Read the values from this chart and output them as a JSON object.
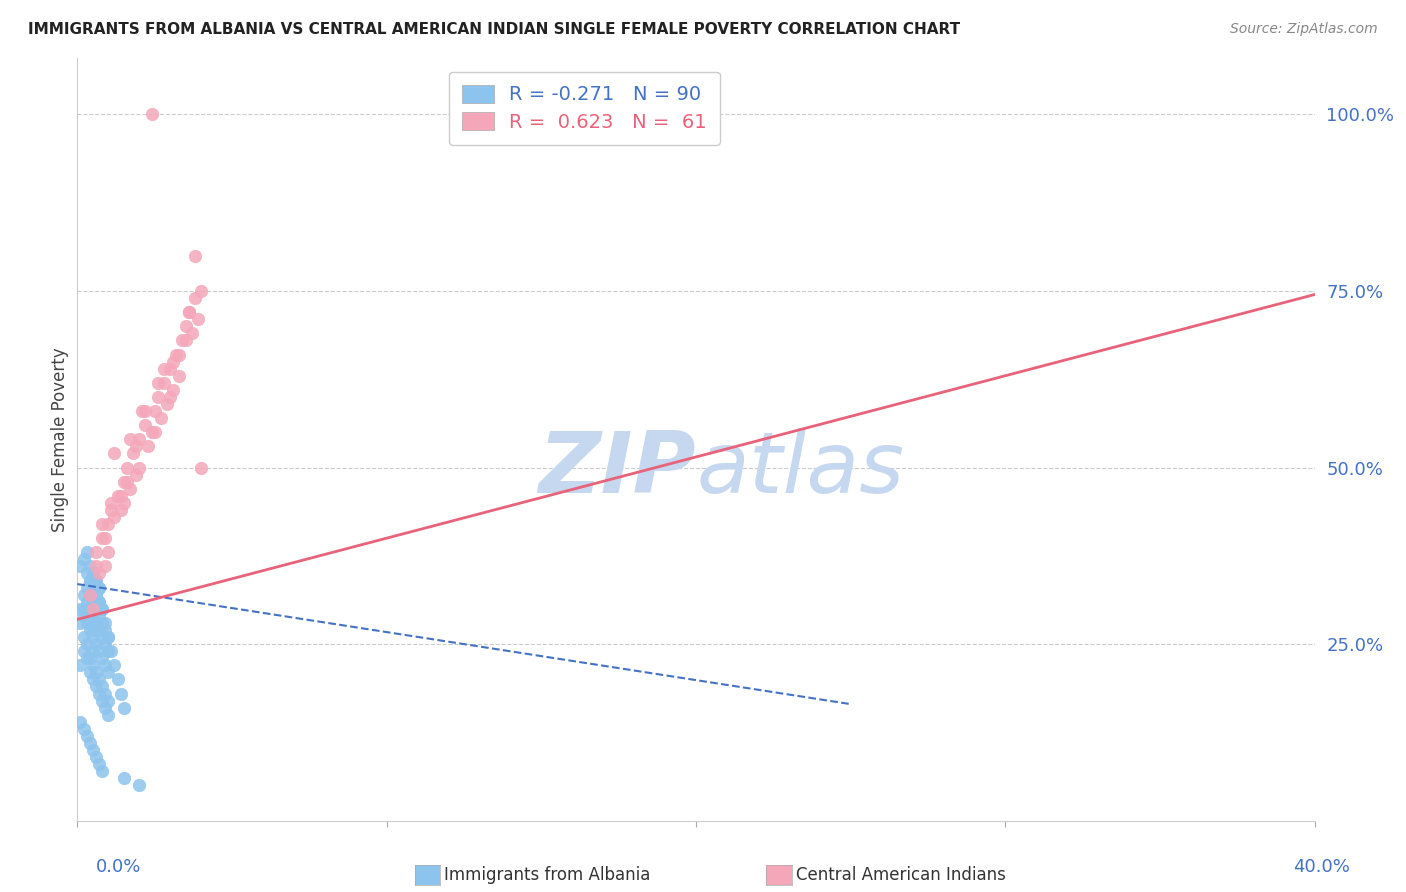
{
  "title": "IMMIGRANTS FROM ALBANIA VS CENTRAL AMERICAN INDIAN SINGLE FEMALE POVERTY CORRELATION CHART",
  "source": "Source: ZipAtlas.com",
  "ylabel": "Single Female Poverty",
  "ytick_labels": [
    "25.0%",
    "50.0%",
    "75.0%",
    "100.0%"
  ],
  "ytick_values": [
    0.25,
    0.5,
    0.75,
    1.0
  ],
  "xlim": [
    0.0,
    0.4
  ],
  "ylim": [
    0.0,
    1.08
  ],
  "legend_r1": "-0.271",
  "legend_n1": "90",
  "legend_r2": "0.623",
  "legend_n2": "61",
  "blue_color": "#8DC4ED",
  "blue_line_color": "#4472C4",
  "pink_color": "#F4A7B9",
  "pink_line_color": "#E8637A",
  "watermark_color": "#C5D8F0",
  "title_color": "#222222",
  "source_color": "#888888",
  "axis_label_color": "#4472C4",
  "grid_color": "#CCCCCC",
  "background_color": "#FFFFFF",
  "blue_x": [
    0.001,
    0.002,
    0.002,
    0.003,
    0.003,
    0.003,
    0.004,
    0.004,
    0.004,
    0.004,
    0.005,
    0.005,
    0.005,
    0.005,
    0.005,
    0.006,
    0.006,
    0.006,
    0.006,
    0.007,
    0.007,
    0.007,
    0.007,
    0.008,
    0.008,
    0.008,
    0.009,
    0.009,
    0.01,
    0.01,
    0.001,
    0.002,
    0.002,
    0.003,
    0.003,
    0.004,
    0.004,
    0.005,
    0.005,
    0.005,
    0.006,
    0.006,
    0.007,
    0.007,
    0.008,
    0.008,
    0.009,
    0.009,
    0.01,
    0.01,
    0.001,
    0.002,
    0.003,
    0.003,
    0.004,
    0.004,
    0.005,
    0.005,
    0.006,
    0.006,
    0.007,
    0.007,
    0.008,
    0.009,
    0.01,
    0.011,
    0.012,
    0.013,
    0.014,
    0.015,
    0.001,
    0.002,
    0.003,
    0.004,
    0.005,
    0.006,
    0.007,
    0.008,
    0.009,
    0.01,
    0.001,
    0.002,
    0.003,
    0.004,
    0.005,
    0.006,
    0.007,
    0.008,
    0.015,
    0.02
  ],
  "blue_y": [
    0.28,
    0.32,
    0.3,
    0.31,
    0.29,
    0.33,
    0.3,
    0.28,
    0.32,
    0.34,
    0.27,
    0.31,
    0.29,
    0.33,
    0.35,
    0.28,
    0.3,
    0.32,
    0.34,
    0.27,
    0.29,
    0.31,
    0.33,
    0.26,
    0.28,
    0.3,
    0.25,
    0.27,
    0.24,
    0.26,
    0.22,
    0.24,
    0.26,
    0.23,
    0.25,
    0.21,
    0.23,
    0.2,
    0.22,
    0.24,
    0.19,
    0.21,
    0.18,
    0.2,
    0.17,
    0.19,
    0.16,
    0.18,
    0.15,
    0.17,
    0.36,
    0.37,
    0.35,
    0.38,
    0.34,
    0.36,
    0.33,
    0.35,
    0.32,
    0.34,
    0.31,
    0.33,
    0.3,
    0.28,
    0.26,
    0.24,
    0.22,
    0.2,
    0.18,
    0.16,
    0.3,
    0.29,
    0.28,
    0.27,
    0.26,
    0.25,
    0.24,
    0.23,
    0.22,
    0.21,
    0.14,
    0.13,
    0.12,
    0.11,
    0.1,
    0.09,
    0.08,
    0.07,
    0.06,
    0.05
  ],
  "pink_x": [
    0.004,
    0.006,
    0.007,
    0.008,
    0.009,
    0.01,
    0.011,
    0.012,
    0.013,
    0.014,
    0.015,
    0.016,
    0.017,
    0.018,
    0.019,
    0.02,
    0.022,
    0.023,
    0.024,
    0.025,
    0.026,
    0.027,
    0.028,
    0.029,
    0.03,
    0.031,
    0.032,
    0.033,
    0.034,
    0.035,
    0.036,
    0.037,
    0.038,
    0.039,
    0.04,
    0.005,
    0.01,
    0.015,
    0.02,
    0.025,
    0.03,
    0.035,
    0.04,
    0.008,
    0.012,
    0.016,
    0.021,
    0.026,
    0.031,
    0.036,
    0.006,
    0.011,
    0.017,
    0.022,
    0.028,
    0.033,
    0.038,
    0.009,
    0.014,
    0.019,
    0.024
  ],
  "pink_y": [
    0.32,
    0.38,
    0.35,
    0.4,
    0.36,
    0.42,
    0.45,
    0.43,
    0.46,
    0.44,
    0.48,
    0.5,
    0.47,
    0.52,
    0.49,
    0.54,
    0.56,
    0.53,
    0.55,
    0.58,
    0.6,
    0.57,
    0.62,
    0.59,
    0.64,
    0.61,
    0.66,
    0.63,
    0.68,
    0.7,
    0.72,
    0.69,
    0.74,
    0.71,
    0.75,
    0.3,
    0.38,
    0.45,
    0.5,
    0.55,
    0.6,
    0.68,
    0.5,
    0.42,
    0.52,
    0.48,
    0.58,
    0.62,
    0.65,
    0.72,
    0.36,
    0.44,
    0.54,
    0.58,
    0.64,
    0.66,
    0.8,
    0.4,
    0.46,
    0.53,
    1.0
  ],
  "blue_trend_x": [
    0.0,
    0.25
  ],
  "blue_trend_y": [
    0.335,
    0.165
  ],
  "pink_trend_x": [
    0.0,
    0.4
  ],
  "pink_trend_y": [
    0.285,
    0.745
  ]
}
